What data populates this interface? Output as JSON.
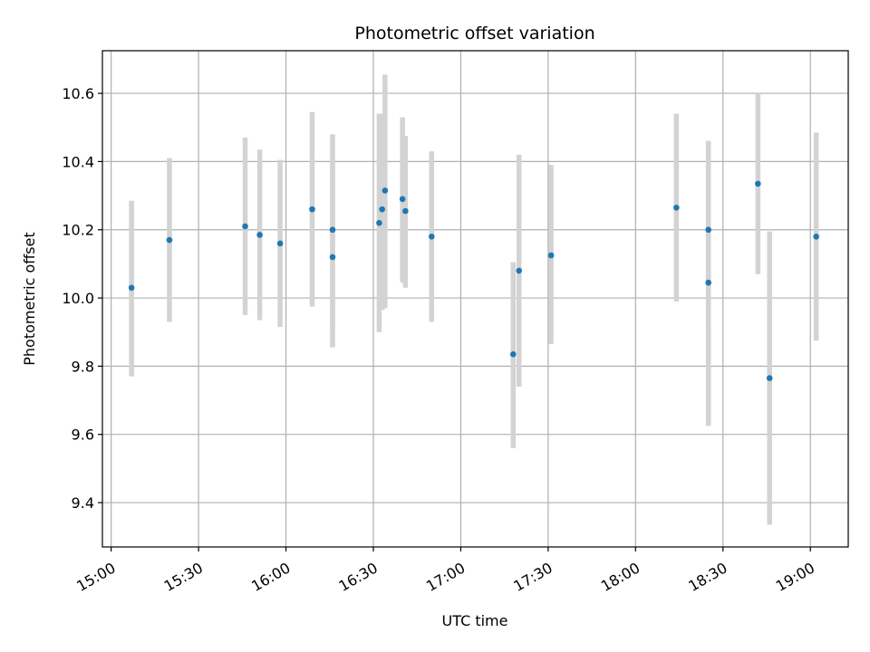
{
  "chart_data": {
    "type": "scatter",
    "title": "Photometric offset variation",
    "xlabel": "UTC time",
    "ylabel": "Photometric offset",
    "x_axis_type": "time",
    "xlim": [
      "14:57",
      "19:13"
    ],
    "ylim": [
      9.27,
      10.725
    ],
    "xticks": [
      "15:00",
      "15:30",
      "16:00",
      "16:30",
      "17:00",
      "17:30",
      "18:00",
      "18:30",
      "19:00"
    ],
    "yticks": [
      9.4,
      9.6,
      9.8,
      10.0,
      10.2,
      10.4,
      10.6
    ],
    "ytick_labels": [
      "9.4",
      "9.6",
      "9.8",
      "10.0",
      "10.2",
      "10.4",
      "10.6"
    ],
    "grid": true,
    "colors": {
      "points": "#1f77b4",
      "error_bars": "#d3d3d3",
      "grid": "#b0b0b0"
    },
    "points": [
      {
        "x": "15:07",
        "y": 10.03,
        "yerr_low": 9.77,
        "yerr_high": 10.285
      },
      {
        "x": "15:20",
        "y": 10.17,
        "yerr_low": 9.93,
        "yerr_high": 10.41
      },
      {
        "x": "15:46",
        "y": 10.21,
        "yerr_low": 9.95,
        "yerr_high": 10.47
      },
      {
        "x": "15:51",
        "y": 10.185,
        "yerr_low": 9.935,
        "yerr_high": 10.435
      },
      {
        "x": "15:58",
        "y": 10.16,
        "yerr_low": 9.915,
        "yerr_high": 10.405
      },
      {
        "x": "16:09",
        "y": 10.26,
        "yerr_low": 9.975,
        "yerr_high": 10.545
      },
      {
        "x": "16:16",
        "y": 10.2,
        "yerr_low": 9.915,
        "yerr_high": 10.48
      },
      {
        "x": "16:16",
        "y": 10.12,
        "yerr_low": 9.855,
        "yerr_high": 10.39
      },
      {
        "x": "16:32",
        "y": 10.22,
        "yerr_low": 9.9,
        "yerr_high": 10.54
      },
      {
        "x": "16:33",
        "y": 10.26,
        "yerr_low": 9.965,
        "yerr_high": 10.54
      },
      {
        "x": "16:34",
        "y": 10.315,
        "yerr_low": 9.97,
        "yerr_high": 10.655
      },
      {
        "x": "16:40",
        "y": 10.29,
        "yerr_low": 10.045,
        "yerr_high": 10.53
      },
      {
        "x": "16:41",
        "y": 10.255,
        "yerr_low": 10.03,
        "yerr_high": 10.475
      },
      {
        "x": "16:50",
        "y": 10.18,
        "yerr_low": 9.93,
        "yerr_high": 10.43
      },
      {
        "x": "17:18",
        "y": 9.835,
        "yerr_low": 9.56,
        "yerr_high": 10.105
      },
      {
        "x": "17:20",
        "y": 10.08,
        "yerr_low": 9.74,
        "yerr_high": 10.42
      },
      {
        "x": "17:31",
        "y": 10.125,
        "yerr_low": 9.865,
        "yerr_high": 10.39
      },
      {
        "x": "18:14",
        "y": 10.265,
        "yerr_low": 9.99,
        "yerr_high": 10.54
      },
      {
        "x": "18:25",
        "y": 10.2,
        "yerr_low": 9.935,
        "yerr_high": 10.46
      },
      {
        "x": "18:25",
        "y": 10.045,
        "yerr_low": 9.625,
        "yerr_high": 10.46
      },
      {
        "x": "18:42",
        "y": 10.335,
        "yerr_low": 10.07,
        "yerr_high": 10.6
      },
      {
        "x": "18:46",
        "y": 9.765,
        "yerr_low": 9.335,
        "yerr_high": 10.195
      },
      {
        "x": "19:02",
        "y": 10.18,
        "yerr_low": 9.875,
        "yerr_high": 10.485
      }
    ]
  }
}
